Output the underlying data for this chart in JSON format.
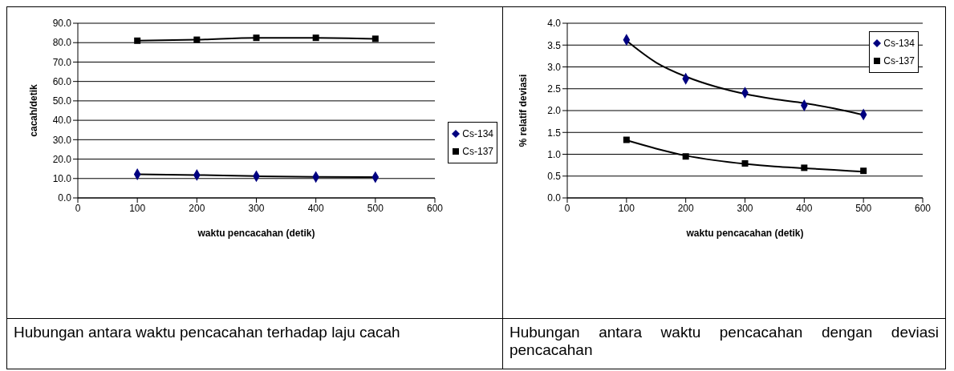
{
  "chart_data": [
    {
      "type": "scatter",
      "xlabel": "waktu pencacahan (detik)",
      "ylabel": "cacah/detik",
      "xlim": [
        0,
        600
      ],
      "xticks": [
        0,
        100,
        200,
        300,
        400,
        500,
        600
      ],
      "ylim": [
        0,
        90
      ],
      "yticks": [
        {
          "value": 0,
          "label": "0.0"
        },
        {
          "value": 10,
          "label": "10.0"
        },
        {
          "value": 20,
          "label": "20.0"
        },
        {
          "value": 30,
          "label": "30.0"
        },
        {
          "value": 40,
          "label": "40.0"
        },
        {
          "value": 50,
          "label": "50.0"
        },
        {
          "value": 60,
          "label": "60.0"
        },
        {
          "value": 70,
          "label": "70.0"
        },
        {
          "value": 80,
          "label": "80.0"
        },
        {
          "value": 90,
          "label": "90.0"
        }
      ],
      "grid": "y",
      "legend": "right",
      "series": [
        {
          "name": "Cs-134",
          "color": "#000080",
          "marker": "diamond",
          "x": [
            100,
            200,
            300,
            400,
            500
          ],
          "values": [
            12.2,
            11.8,
            11.2,
            10.8,
            10.7
          ]
        },
        {
          "name": "Cs-137",
          "color": "#000000",
          "marker": "square",
          "x": [
            100,
            200,
            300,
            400,
            500
          ],
          "values": [
            81.0,
            81.5,
            82.5,
            82.5,
            82.0
          ]
        },
        {
          "type": "line",
          "color": "#000000",
          "x": [
            100,
            200,
            300,
            400,
            500
          ],
          "values": [
            12.2,
            11.8,
            11.2,
            10.8,
            10.7
          ]
        },
        {
          "type": "line",
          "color": "#000000",
          "x": [
            100,
            200,
            300,
            400,
            500
          ],
          "values": [
            81.0,
            81.5,
            82.5,
            82.5,
            82.0
          ]
        }
      ],
      "annotations": [
        "Hubungan antara waktu pencacahan terhadap laju cacah"
      ]
    },
    {
      "type": "scatter",
      "xlabel": "waktu pencacahan (detik)",
      "ylabel": "% relatif deviasi",
      "xlim": [
        0,
        600
      ],
      "xticks": [
        0,
        100,
        200,
        300,
        400,
        500,
        600
      ],
      "ylim": [
        0,
        4
      ],
      "yticks": [
        {
          "value": 0,
          "label": "0.0"
        },
        {
          "value": 0.5,
          "label": "0.5"
        },
        {
          "value": 1,
          "label": "1.0"
        },
        {
          "value": 1.5,
          "label": "1.5"
        },
        {
          "value": 2,
          "label": "2.0"
        },
        {
          "value": 2.5,
          "label": "2.5"
        },
        {
          "value": 3,
          "label": "3.0"
        },
        {
          "value": 3.5,
          "label": "3.5"
        },
        {
          "value": 4,
          "label": "4.0"
        }
      ],
      "grid": "y",
      "legend": "top right",
      "series": [
        {
          "name": "Cs-134",
          "color": "#000080",
          "marker": "diamond",
          "x": [
            100,
            200,
            300,
            400,
            500
          ],
          "values": [
            3.62,
            2.73,
            2.41,
            2.12,
            1.91
          ]
        },
        {
          "name": "Cs-137",
          "color": "#000000",
          "marker": "square",
          "x": [
            100,
            200,
            300,
            400,
            500
          ],
          "values": [
            1.33,
            0.95,
            0.79,
            0.69,
            0.62
          ]
        },
        {
          "type": "line",
          "color": "#000000",
          "x": [
            100,
            150,
            200,
            250,
            300,
            350,
            400,
            450,
            500
          ],
          "values": [
            3.6,
            3.1,
            2.78,
            2.55,
            2.38,
            2.26,
            2.17,
            2.05,
            1.9
          ]
        },
        {
          "type": "line",
          "color": "#000000",
          "x": [
            100,
            150,
            200,
            250,
            300,
            350,
            400,
            450,
            500
          ],
          "values": [
            1.32,
            1.13,
            0.97,
            0.86,
            0.78,
            0.72,
            0.68,
            0.64,
            0.6
          ]
        }
      ],
      "annotations": [
        "Hubungan antara waktu pencacahan dengan deviasi pencacahan"
      ]
    }
  ]
}
